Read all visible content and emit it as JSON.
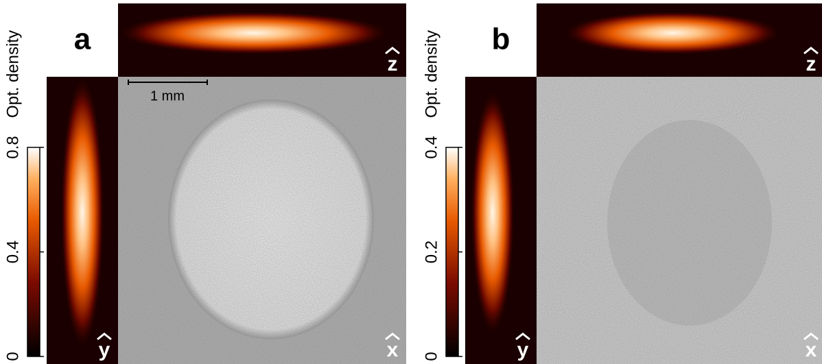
{
  "panels": [
    {
      "label": "a",
      "colorbar": {
        "label": "Opt. density",
        "ticks": [
          0,
          0.4,
          0.8
        ]
      },
      "scale_bar": "1 mm",
      "axes": {
        "top": "z",
        "side": "y",
        "main": "x"
      }
    },
    {
      "label": "b",
      "colorbar": {
        "label": "Opt. density",
        "ticks": [
          0,
          0.2,
          0.4
        ]
      },
      "axes": {
        "top": "z",
        "side": "y",
        "main": "x"
      }
    }
  ]
}
